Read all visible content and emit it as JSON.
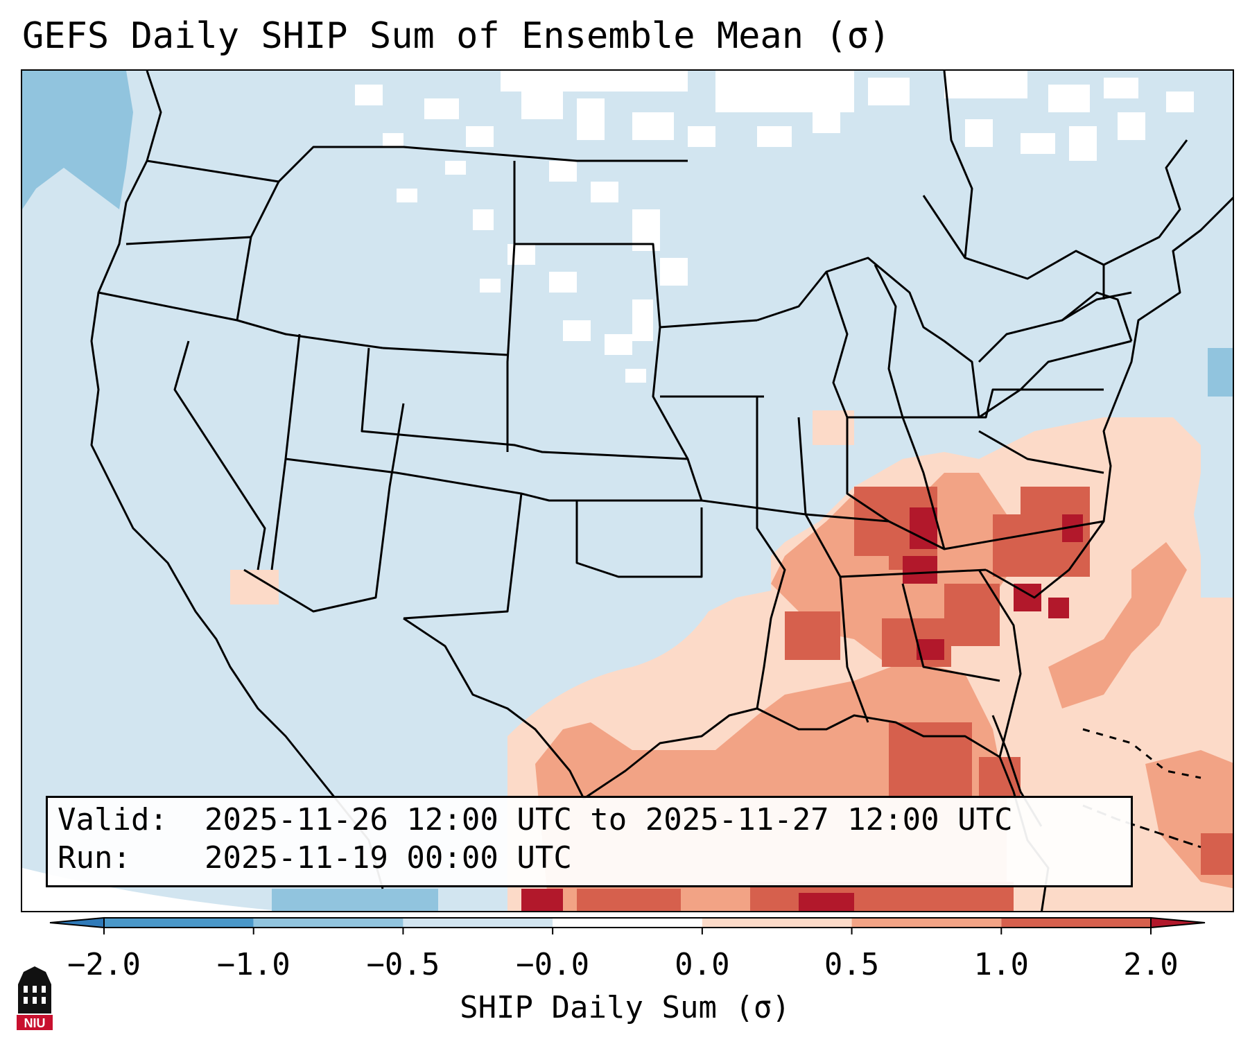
{
  "title": "GEFS Daily SHIP Sum of Ensemble Mean (σ)",
  "info": {
    "valid_key": "Valid:",
    "valid_value": "2025-11-26 12:00 UTC to 2025-11-27 12:00 UTC",
    "run_key": "Run:",
    "run_value": "2025-11-19 00:00 UTC"
  },
  "colorbar": {
    "label": "SHIP Daily Sum (σ)",
    "ticks": [
      "−2.0",
      "−1.0",
      "−0.5",
      "−0.0",
      "0.0",
      "0.5",
      "1.0",
      "2.0"
    ],
    "colors": [
      "#2f7ab9",
      "#4a98c9",
      "#91c4de",
      "#d2e5f0",
      "#ffffff",
      "#fcdac8",
      "#f2a385",
      "#d6604d",
      "#b2182b"
    ],
    "extend": "both"
  },
  "map": {
    "region": "Continental United States",
    "projection": "conic",
    "ocean_color": "#d2e5f0",
    "borders": "black"
  },
  "logo": {
    "text": "NIU",
    "colors": [
      "#c8102e",
      "#000000"
    ]
  }
}
